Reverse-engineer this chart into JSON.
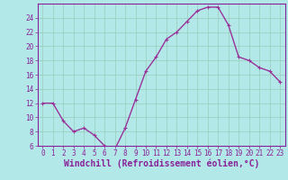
{
  "x": [
    0,
    1,
    2,
    3,
    4,
    5,
    6,
    7,
    8,
    9,
    10,
    11,
    12,
    13,
    14,
    15,
    16,
    17,
    18,
    19,
    20,
    21,
    22,
    23
  ],
  "y": [
    12,
    12,
    9.5,
    8,
    8.5,
    7.5,
    6,
    5.5,
    8.5,
    12.5,
    16.5,
    18.5,
    21,
    22,
    23.5,
    25,
    25.5,
    25.5,
    23,
    18.5,
    18,
    17,
    16.5,
    15
  ],
  "line_color": "#993399",
  "marker": "+",
  "bg_color": "#b3e8e8",
  "grid_color": "#99ccbb",
  "xlabel": "Windchill (Refroidissement éolien,°C)",
  "ylim": [
    6,
    26
  ],
  "yticks": [
    6,
    8,
    10,
    12,
    14,
    16,
    18,
    20,
    22,
    24
  ],
  "xlim": [
    -0.5,
    23.5
  ],
  "xticks": [
    0,
    1,
    2,
    3,
    4,
    5,
    6,
    7,
    8,
    9,
    10,
    11,
    12,
    13,
    14,
    15,
    16,
    17,
    18,
    19,
    20,
    21,
    22,
    23
  ],
  "tick_color": "#882299",
  "tick_fontsize": 5.5,
  "xlabel_fontsize": 7,
  "spine_color": "#882299",
  "marker_size": 3,
  "linewidth": 1.0
}
